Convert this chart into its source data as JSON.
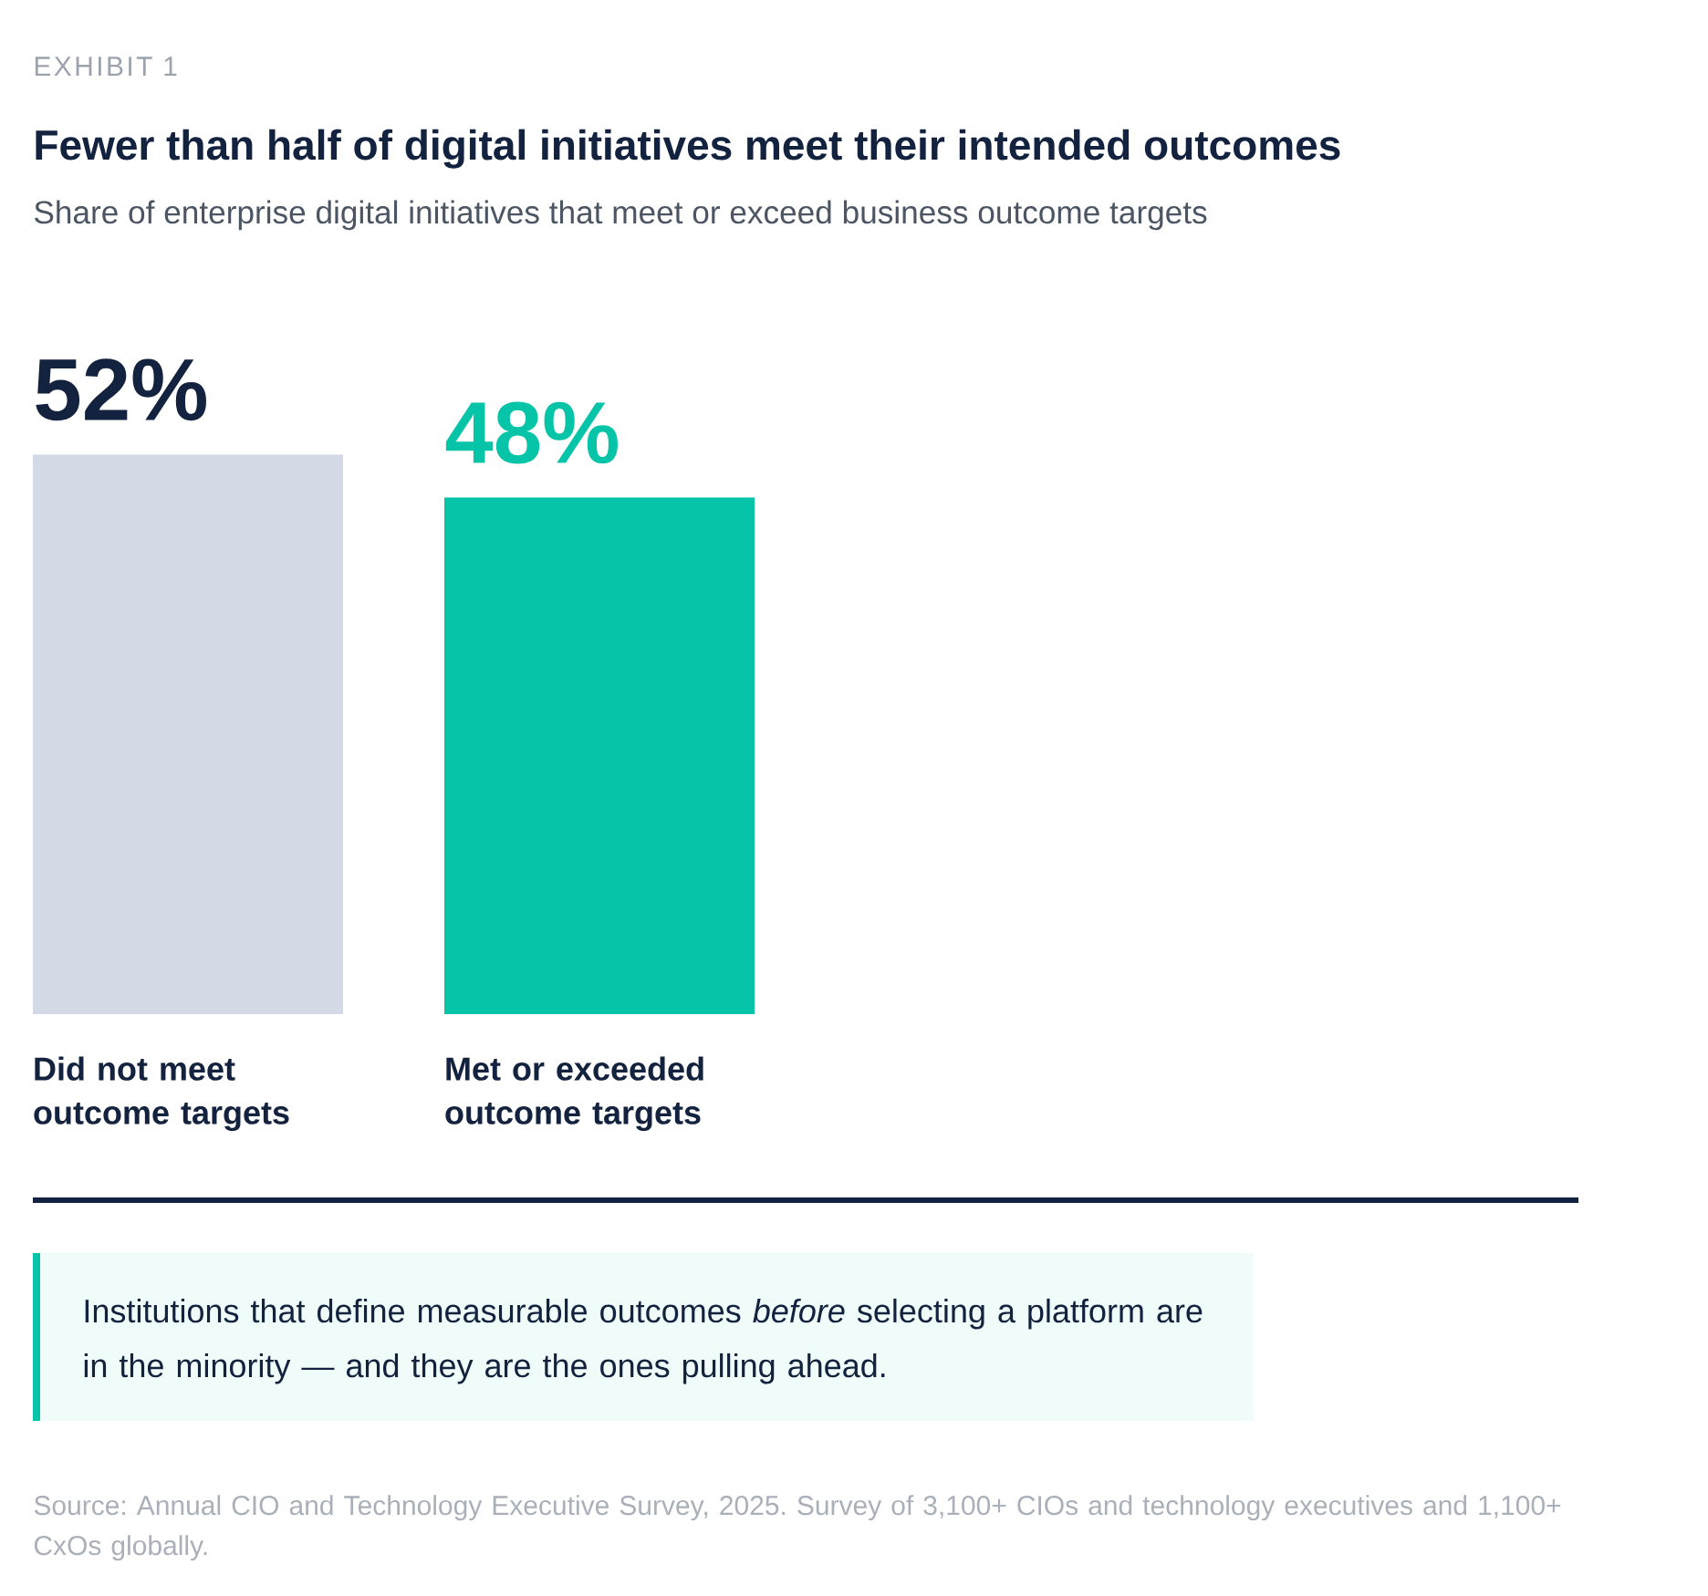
{
  "chart_data": {
    "type": "bar",
    "title": "Fewer than half of digital initiatives meet their intended outcomes",
    "subtitle": "Share of enterprise digital initiatives that meet or exceed business outcome targets",
    "categories": [
      "Did not meet outcome targets",
      "Met or exceeded outcome targets"
    ],
    "values": [
      52,
      48
    ],
    "colors": [
      "#d3dae5",
      "#06c4a8"
    ],
    "value_labels": [
      "52%",
      "48%"
    ],
    "annotations": [
      "EXHIBIT 1",
      "Institutions that define measurable outcomes *before* selecting a platform are in the minority — and they are the ones pulling ahead.",
      "Source: Annual CIO and Technology Executive Survey, 2025. Survey of 3,100+ CIOs and technology executives and 1,100+ CxOs globally."
    ]
  }
}
